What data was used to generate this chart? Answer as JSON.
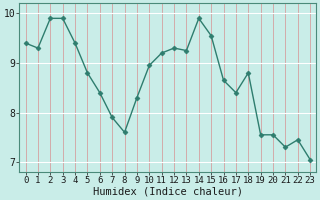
{
  "x": [
    0,
    1,
    2,
    3,
    4,
    5,
    6,
    7,
    8,
    9,
    10,
    11,
    12,
    13,
    14,
    15,
    16,
    17,
    18,
    19,
    20,
    21,
    22,
    23
  ],
  "y": [
    9.4,
    9.3,
    9.9,
    9.9,
    9.4,
    8.8,
    8.4,
    7.9,
    7.6,
    8.3,
    8.95,
    9.2,
    9.3,
    9.25,
    9.9,
    9.55,
    8.65,
    8.4,
    8.8,
    7.55,
    7.55,
    7.3,
    7.45,
    7.05
  ],
  "line_color": "#2e7d6e",
  "marker": "D",
  "marker_size": 2.5,
  "bg_color": "#c9ede8",
  "hgrid_color": "#ffffff",
  "vgrid_color": "#d4a0a0",
  "xlabel": "Humidex (Indice chaleur)",
  "ylim": [
    6.8,
    10.2
  ],
  "xlim": [
    -0.5,
    23.5
  ],
  "yticks": [
    7,
    8,
    9,
    10
  ],
  "xticks": [
    0,
    1,
    2,
    3,
    4,
    5,
    6,
    7,
    8,
    9,
    10,
    11,
    12,
    13,
    14,
    15,
    16,
    17,
    18,
    19,
    20,
    21,
    22,
    23
  ],
  "xlabel_fontsize": 7.5,
  "tick_fontsize": 6.5,
  "linewidth": 1.0
}
